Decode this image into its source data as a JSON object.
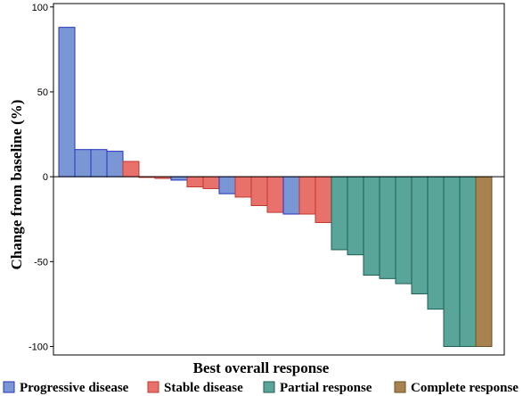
{
  "chart_data": {
    "type": "bar",
    "chart_style": "waterfall",
    "xlabel": "Best overall response",
    "ylabel": "Change from baseline (%)",
    "ylim": [
      -105,
      102
    ],
    "yticks": [
      -100,
      -50,
      0,
      50,
      100
    ],
    "grid": false,
    "legend_position": "bottom",
    "categories": [
      {
        "name": "Progressive disease",
        "fill": "#7B96D5",
        "stroke": "#2433BF"
      },
      {
        "name": "Stable disease",
        "fill": "#E9716C",
        "stroke": "#C0392B"
      },
      {
        "name": "Partial response",
        "fill": "#5AA59A",
        "stroke": "#1E5E55"
      },
      {
        "name": "Complete response",
        "fill": "#A9834F",
        "stroke": "#6B4F24"
      }
    ],
    "bars": [
      {
        "value": 88,
        "category": "Progressive disease"
      },
      {
        "value": 16,
        "category": "Progressive disease"
      },
      {
        "value": 16,
        "category": "Progressive disease"
      },
      {
        "value": 15,
        "category": "Progressive disease"
      },
      {
        "value": 9,
        "category": "Stable disease"
      },
      {
        "value": 0,
        "category": "Stable disease"
      },
      {
        "value": -1,
        "category": "Stable disease"
      },
      {
        "value": -2,
        "category": "Progressive disease"
      },
      {
        "value": -6,
        "category": "Stable disease"
      },
      {
        "value": -7,
        "category": "Stable disease"
      },
      {
        "value": -10,
        "category": "Progressive disease"
      },
      {
        "value": -12,
        "category": "Stable disease"
      },
      {
        "value": -17,
        "category": "Stable disease"
      },
      {
        "value": -21,
        "category": "Stable disease"
      },
      {
        "value": -22,
        "category": "Progressive disease"
      },
      {
        "value": -22,
        "category": "Stable disease"
      },
      {
        "value": -27,
        "category": "Stable disease"
      },
      {
        "value": -43,
        "category": "Partial response"
      },
      {
        "value": -46,
        "category": "Partial response"
      },
      {
        "value": -58,
        "category": "Partial response"
      },
      {
        "value": -60,
        "category": "Partial response"
      },
      {
        "value": -63,
        "category": "Partial response"
      },
      {
        "value": -69,
        "category": "Partial response"
      },
      {
        "value": -78,
        "category": "Partial response"
      },
      {
        "value": -100,
        "category": "Partial response"
      },
      {
        "value": -100,
        "category": "Partial response"
      },
      {
        "value": -100,
        "category": "Complete response"
      }
    ]
  }
}
